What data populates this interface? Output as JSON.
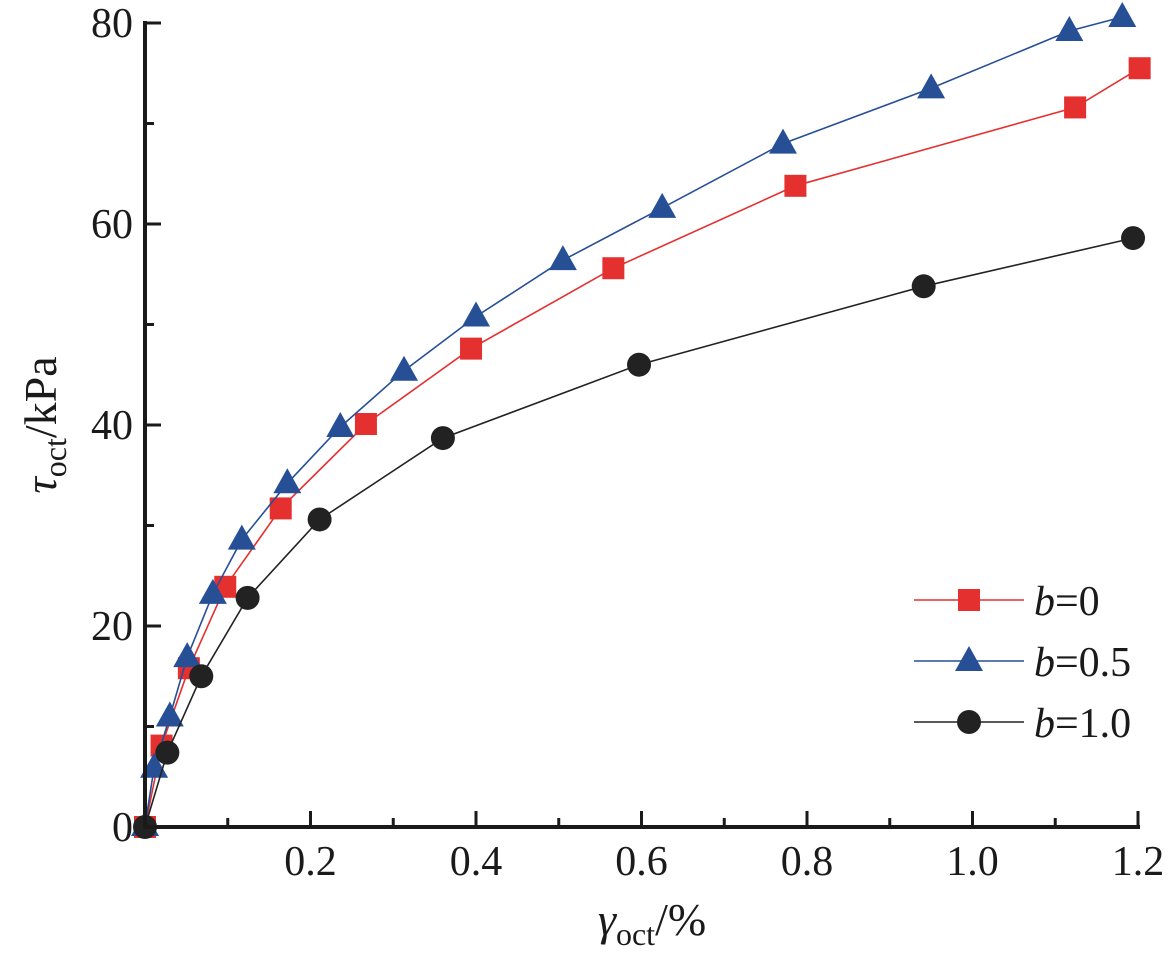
{
  "chart_data": {
    "type": "line",
    "title": "",
    "xlabel": {
      "symbol": "γ",
      "subscript": "oct",
      "unit": "/%"
    },
    "ylabel": {
      "symbol": "τ",
      "subscript": "oct",
      "unit": "/kPa"
    },
    "xlim": [
      0,
      1.2
    ],
    "ylim": [
      0,
      80
    ],
    "xticks": [
      0.2,
      0.4,
      0.6,
      0.8,
      1.0,
      1.2
    ],
    "xtick_labels": [
      "0.2",
      "0.4",
      "0.6",
      "0.8",
      "1.0",
      "1.2"
    ],
    "xminor_step": 0.1,
    "yticks": [
      0,
      20,
      40,
      60,
      80
    ],
    "ytick_labels": [
      "0",
      "20",
      "40",
      "60",
      "80"
    ],
    "yminor_step": 10,
    "grid": false,
    "legend_position": "bottom-right",
    "series": [
      {
        "name": "b=0",
        "legend_var": "b",
        "legend_value": "=0",
        "marker": "square",
        "color": "#e53030",
        "x": [
          0,
          0.02,
          0.053,
          0.097,
          0.164,
          0.267,
          0.394,
          0.566,
          0.786,
          1.124,
          1.202
        ],
        "y": [
          0,
          8.1,
          15.8,
          23.9,
          31.7,
          40.1,
          47.6,
          55.6,
          63.8,
          71.6,
          75.5
        ]
      },
      {
        "name": "b=0.5",
        "legend_var": "b",
        "legend_value": "=0.5",
        "marker": "triangle",
        "color": "#274f96",
        "x": [
          0,
          0.011,
          0.03,
          0.051,
          0.082,
          0.117,
          0.172,
          0.236,
          0.313,
          0.4,
          0.505,
          0.625,
          0.771,
          0.95,
          1.117,
          1.181
        ],
        "y": [
          0.1,
          5.9,
          11.0,
          16.9,
          23.2,
          28.6,
          34.2,
          39.8,
          45.4,
          50.8,
          56.4,
          61.6,
          68.0,
          73.5,
          79.2,
          80.6
        ]
      },
      {
        "name": "b=1.0",
        "legend_var": "b",
        "legend_value": "=1.0",
        "marker": "circle",
        "color": "#222222",
        "x": [
          0,
          0.027,
          0.068,
          0.124,
          0.211,
          0.36,
          0.597,
          0.941,
          1.194
        ],
        "y": [
          0,
          7.4,
          15.0,
          22.8,
          30.6,
          38.7,
          46.0,
          53.8,
          58.6
        ]
      }
    ]
  }
}
